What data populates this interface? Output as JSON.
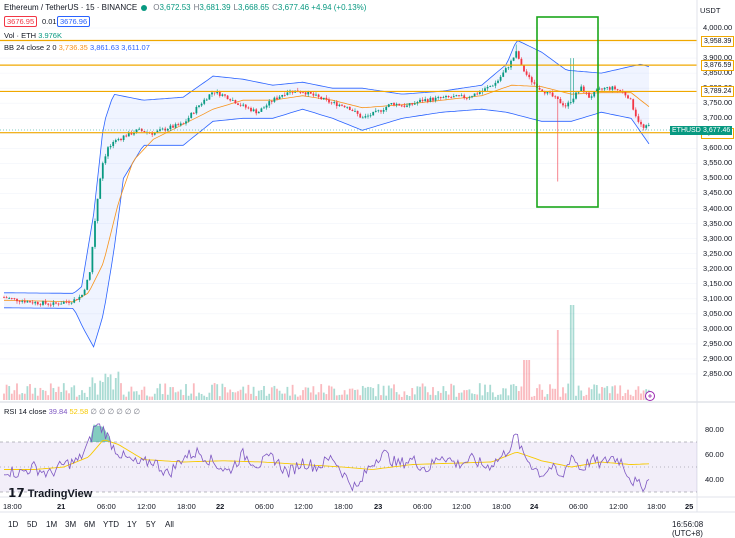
{
  "header": {
    "symbol": "Ethereum / TetherUS · 15 · BINANCE",
    "o_label": "O",
    "o": "3,672.53",
    "h_label": "H",
    "h": "3,681.39",
    "l_label": "L",
    "l": "3,668.65",
    "c_label": "C",
    "c": "3,677.46",
    "chg": "+4.94 (+0.13%)",
    "sell_price": "3676.95",
    "spread": "0.01",
    "buy_price": "3676.96"
  },
  "indicators": {
    "vol_label": "Vol · ETH",
    "vol_value": "3.976K",
    "bb_label": "BB 24 close 2 0",
    "bb_basis": "3,736.35",
    "bb_upper": "3,861.63",
    "bb_lower": "3,611.07",
    "rsi_label": "RSI 14 close",
    "rsi_value": "39.84",
    "rsi_ma": "52.58",
    "rsi_extra": "∅ ∅ ∅ ∅ ∅ ∅"
  },
  "currency": "USDT",
  "logo_text": "TradingView",
  "timezone": "16:56:08 (UTC+8)",
  "range_buttons": [
    "1D",
    "5D",
    "1M",
    "3M",
    "6M",
    "YTD",
    "1Y",
    "5Y",
    "All"
  ],
  "x_ticks": [
    {
      "label": "18:00",
      "bold": false
    },
    {
      "label": "21",
      "bold": true
    },
    {
      "label": "06:00",
      "bold": false
    },
    {
      "label": "12:00",
      "bold": false
    },
    {
      "label": "18:00",
      "bold": false
    },
    {
      "label": "22",
      "bold": true
    },
    {
      "label": "06:00",
      "bold": false
    },
    {
      "label": "12:00",
      "bold": false
    },
    {
      "label": "18:00",
      "bold": false
    },
    {
      "label": "23",
      "bold": true
    },
    {
      "label": "06:00",
      "bold": false
    },
    {
      "label": "12:00",
      "bold": false
    },
    {
      "label": "18:00",
      "bold": false
    },
    {
      "label": "24",
      "bold": true
    },
    {
      "label": "06:00",
      "bold": false
    },
    {
      "label": "12:00",
      "bold": false
    },
    {
      "label": "18:00",
      "bold": false
    },
    {
      "label": "25",
      "bold": true
    }
  ],
  "price_ticks": [
    "4,000.00",
    "3,950.00",
    "3,900.00",
    "3,850.00",
    "3,800.00",
    "3,750.00",
    "3,700.00",
    "3,650.00",
    "3,600.00",
    "3,550.00",
    "3,500.00",
    "3,450.00",
    "3,400.00",
    "3,350.00",
    "3,300.00",
    "3,250.00",
    "3,200.00",
    "3,150.00",
    "3,100.00",
    "3,050.00",
    "3,000.00",
    "2,950.00",
    "2,900.00",
    "2,850.00"
  ],
  "rsi_ticks": [
    "80.00",
    "60.00",
    "40.00"
  ],
  "level_tags": [
    "3,958.39",
    "3,876.59",
    "3,789.24",
    "3,652.05"
  ],
  "price_tag": {
    "symbol": "ETHUSDT",
    "value": "3,677.46"
  },
  "chart_data": {
    "type": "candlestick",
    "ylim": [
      2830,
      4010
    ],
    "horizontal_levels": [
      3958.39,
      3876.59,
      3789.24,
      3652.05
    ],
    "colors": {
      "up": "#089981",
      "down": "#f23645",
      "level": "#f0a800",
      "box": "#1aa61a",
      "bb_basis": "#f7931a",
      "bb_band": "#2962ff",
      "rsi": "#7e57c2",
      "rsi_ma": "#f7c900"
    },
    "rsi_range": [
      30,
      80
    ],
    "rsi_bands": [
      70,
      50,
      30
    ],
    "anchors": [
      [
        0,
        3105
      ],
      [
        10,
        3098
      ],
      [
        30,
        3088
      ],
      [
        50,
        3082
      ],
      [
        70,
        3095
      ],
      [
        78,
        3110
      ],
      [
        86,
        3180
      ],
      [
        92,
        3380
      ],
      [
        98,
        3540
      ],
      [
        104,
        3600
      ],
      [
        112,
        3620
      ],
      [
        120,
        3640
      ],
      [
        135,
        3660
      ],
      [
        150,
        3650
      ],
      [
        165,
        3668
      ],
      [
        180,
        3680
      ],
      [
        195,
        3740
      ],
      [
        210,
        3790
      ],
      [
        225,
        3770
      ],
      [
        240,
        3740
      ],
      [
        255,
        3720
      ],
      [
        270,
        3760
      ],
      [
        285,
        3790
      ],
      [
        300,
        3790
      ],
      [
        315,
        3770
      ],
      [
        330,
        3750
      ],
      [
        345,
        3740
      ],
      [
        360,
        3700
      ],
      [
        375,
        3720
      ],
      [
        390,
        3750
      ],
      [
        405,
        3740
      ],
      [
        420,
        3760
      ],
      [
        435,
        3765
      ],
      [
        450,
        3770
      ],
      [
        465,
        3770
      ],
      [
        480,
        3790
      ],
      [
        495,
        3820
      ],
      [
        508,
        3880
      ],
      [
        515,
        3920
      ],
      [
        520,
        3870
      ],
      [
        528,
        3830
      ],
      [
        538,
        3800
      ],
      [
        548,
        3780
      ],
      [
        556,
        3760
      ],
      [
        565,
        3740
      ],
      [
        572,
        3770
      ],
      [
        580,
        3800
      ],
      [
        588,
        3770
      ],
      [
        596,
        3790
      ],
      [
        604,
        3800
      ],
      [
        612,
        3800
      ],
      [
        620,
        3790
      ],
      [
        628,
        3770
      ],
      [
        636,
        3700
      ],
      [
        642,
        3665
      ],
      [
        649,
        3677
      ]
    ],
    "bb_upper": [
      [
        0,
        3120
      ],
      [
        70,
        3118
      ],
      [
        78,
        3140
      ],
      [
        90,
        3380
      ],
      [
        100,
        3680
      ],
      [
        110,
        3780
      ],
      [
        140,
        3760
      ],
      [
        180,
        3770
      ],
      [
        210,
        3840
      ],
      [
        240,
        3830
      ],
      [
        270,
        3810
      ],
      [
        300,
        3820
      ],
      [
        330,
        3800
      ],
      [
        360,
        3800
      ],
      [
        400,
        3780
      ],
      [
        440,
        3790
      ],
      [
        480,
        3810
      ],
      [
        505,
        3880
      ],
      [
        515,
        3960
      ],
      [
        540,
        3920
      ],
      [
        565,
        3860
      ],
      [
        600,
        3850
      ],
      [
        640,
        3880
      ],
      [
        649,
        3870
      ]
    ],
    "bb_lower": [
      [
        0,
        3070
      ],
      [
        70,
        3068
      ],
      [
        80,
        3000
      ],
      [
        90,
        2940
      ],
      [
        100,
        3050
      ],
      [
        110,
        3250
      ],
      [
        120,
        3500
      ],
      [
        140,
        3610
      ],
      [
        180,
        3610
      ],
      [
        210,
        3690
      ],
      [
        240,
        3700
      ],
      [
        270,
        3700
      ],
      [
        300,
        3730
      ],
      [
        330,
        3700
      ],
      [
        360,
        3660
      ],
      [
        400,
        3700
      ],
      [
        440,
        3720
      ],
      [
        480,
        3730
      ],
      [
        505,
        3720
      ],
      [
        540,
        3690
      ],
      [
        570,
        3690
      ],
      [
        600,
        3720
      ],
      [
        630,
        3700
      ],
      [
        649,
        3610
      ]
    ],
    "bb_basis": [
      [
        0,
        3095
      ],
      [
        70,
        3090
      ],
      [
        85,
        3120
      ],
      [
        100,
        3220
      ],
      [
        115,
        3420
      ],
      [
        130,
        3560
      ],
      [
        150,
        3630
      ],
      [
        180,
        3680
      ],
      [
        210,
        3730
      ],
      [
        240,
        3760
      ],
      [
        270,
        3760
      ],
      [
        300,
        3775
      ],
      [
        330,
        3760
      ],
      [
        360,
        3735
      ],
      [
        400,
        3745
      ],
      [
        440,
        3760
      ],
      [
        480,
        3775
      ],
      [
        510,
        3810
      ],
      [
        540,
        3805
      ],
      [
        570,
        3780
      ],
      [
        600,
        3785
      ],
      [
        630,
        3785
      ],
      [
        649,
        3736
      ]
    ],
    "rsi": [
      [
        0,
        48
      ],
      [
        15,
        45
      ],
      [
        30,
        50
      ],
      [
        45,
        44
      ],
      [
        60,
        52
      ],
      [
        75,
        55
      ],
      [
        86,
        70
      ],
      [
        92,
        84
      ],
      [
        100,
        80
      ],
      [
        110,
        66
      ],
      [
        120,
        58
      ],
      [
        135,
        52
      ],
      [
        150,
        55
      ],
      [
        165,
        44
      ],
      [
        180,
        58
      ],
      [
        195,
        62
      ],
      [
        210,
        54
      ],
      [
        225,
        46
      ],
      [
        240,
        60
      ],
      [
        255,
        52
      ],
      [
        270,
        58
      ],
      [
        285,
        45
      ],
      [
        300,
        54
      ],
      [
        315,
        50
      ],
      [
        330,
        58
      ],
      [
        345,
        40
      ],
      [
        355,
        32
      ],
      [
        365,
        48
      ],
      [
        380,
        62
      ],
      [
        395,
        52
      ],
      [
        410,
        56
      ],
      [
        425,
        48
      ],
      [
        440,
        60
      ],
      [
        455,
        52
      ],
      [
        470,
        56
      ],
      [
        485,
        50
      ],
      [
        500,
        58
      ],
      [
        510,
        68
      ],
      [
        515,
        76
      ],
      [
        520,
        62
      ],
      [
        530,
        52
      ],
      [
        540,
        44
      ],
      [
        550,
        50
      ],
      [
        560,
        40
      ],
      [
        570,
        60
      ],
      [
        580,
        48
      ],
      [
        590,
        56
      ],
      [
        600,
        52
      ],
      [
        610,
        58
      ],
      [
        620,
        55
      ],
      [
        630,
        40
      ],
      [
        640,
        34
      ],
      [
        649,
        39.84
      ]
    ],
    "rsi_ma": [
      [
        0,
        48
      ],
      [
        30,
        48
      ],
      [
        60,
        50
      ],
      [
        85,
        58
      ],
      [
        100,
        72
      ],
      [
        115,
        68
      ],
      [
        140,
        56
      ],
      [
        180,
        54
      ],
      [
        220,
        55
      ],
      [
        260,
        54
      ],
      [
        300,
        52
      ],
      [
        340,
        50
      ],
      [
        370,
        48
      ],
      [
        410,
        52
      ],
      [
        450,
        53
      ],
      [
        490,
        54
      ],
      [
        515,
        62
      ],
      [
        540,
        55
      ],
      [
        570,
        50
      ],
      [
        600,
        54
      ],
      [
        630,
        52
      ],
      [
        649,
        52.58
      ]
    ]
  }
}
